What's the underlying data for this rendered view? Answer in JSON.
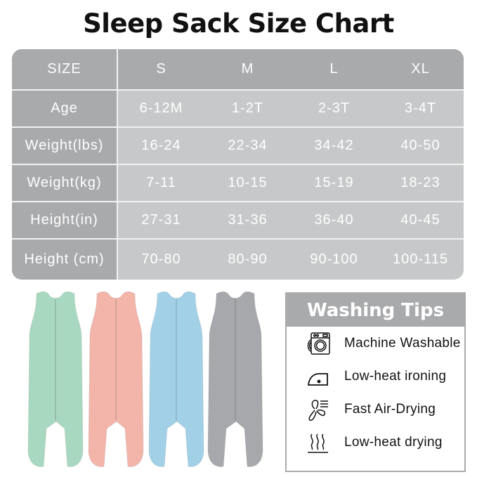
{
  "title": "Sleep Sack Size Chart",
  "size_table": {
    "header": [
      "SIZE",
      "S",
      "M",
      "L",
      "XL"
    ],
    "rows": [
      [
        "Age",
        "6-12M",
        "1-2T",
        "2-3T",
        "3-4T"
      ],
      [
        "Weight(lbs)",
        "16-24",
        "22-34",
        "34-42",
        "40-50"
      ],
      [
        "Weight(kg)",
        "7-11",
        "10-15",
        "15-19",
        "18-23"
      ],
      [
        "Height(in)",
        "27-31",
        "31-36",
        "36-40",
        "40-45"
      ],
      [
        "Height (cm)",
        "70-80",
        "80-90",
        "90-100",
        "100-115"
      ]
    ]
  },
  "product_colors": [
    "#a9d8c0",
    "#f3b4aa",
    "#a2d0e6",
    "#a6a8ab"
  ],
  "washing_tips": {
    "title": "Washing Tips",
    "items": [
      {
        "icon": "washing-machine-icon",
        "label": "Machine Washable"
      },
      {
        "icon": "iron-icon",
        "label": "Low-heat ironing"
      },
      {
        "icon": "fan-icon",
        "label": "Fast Air-Drying"
      },
      {
        "icon": "heat-icon",
        "label": "Low-heat drying"
      }
    ]
  }
}
